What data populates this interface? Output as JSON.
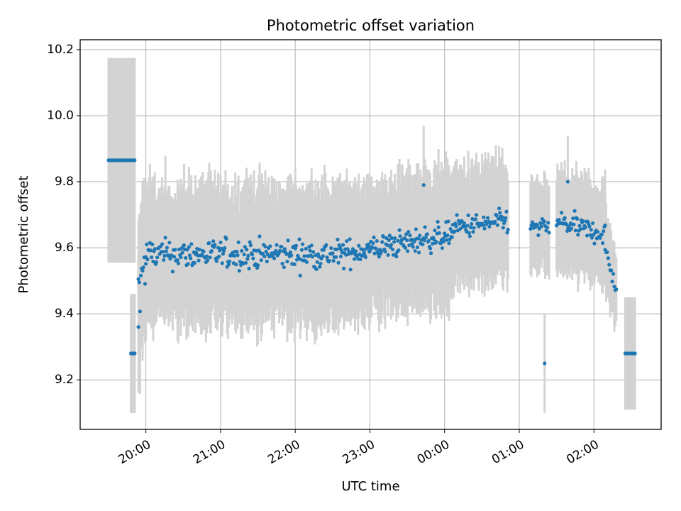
{
  "chart_data": {
    "type": "scatter",
    "title": "Photometric offset variation",
    "xlabel": "UTC time",
    "ylabel": "Photometric offset",
    "x_unit": "UTC time (hours, after 19:00 = 19.x, after midnight = 24.x)",
    "x_ticks": [
      {
        "label": "20:00",
        "hour": 20.0
      },
      {
        "label": "21:00",
        "hour": 21.0
      },
      {
        "label": "22:00",
        "hour": 22.0
      },
      {
        "label": "23:00",
        "hour": 23.0
      },
      {
        "label": "00:00",
        "hour": 24.0
      },
      {
        "label": "01:00",
        "hour": 25.0
      },
      {
        "label": "02:00",
        "hour": 26.0
      }
    ],
    "y_ticks": [
      {
        "label": "9.2",
        "value": 9.2
      },
      {
        "label": "9.4",
        "value": 9.4
      },
      {
        "label": "9.6",
        "value": 9.6
      },
      {
        "label": "9.8",
        "value": 9.8
      },
      {
        "label": "10.0",
        "value": 10.0
      },
      {
        "label": "10.2",
        "value": 10.2
      }
    ],
    "xlim": [
      19.12,
      26.9
    ],
    "ylim": [
      9.05,
      10.23
    ],
    "grid": true,
    "colors": {
      "marker": "#1f77b4",
      "errorbar": "#d3d3d3",
      "grid": "#b0b0b0",
      "axes": "#000000"
    },
    "segments": [
      {
        "x0": 19.5,
        "x1": 19.85,
        "n": 24,
        "base": 9.865,
        "drift": 0.0,
        "noise": 0.0,
        "err": 0.31
      },
      {
        "x0": 19.8,
        "x1": 19.85,
        "n": 6,
        "base": 9.28,
        "drift": 0.0,
        "noise": 0.0,
        "err": 0.18
      },
      {
        "x0": 19.9,
        "x1": 20.0,
        "n": 10,
        "base": 9.5,
        "drift": 0.05,
        "noise": 0.08,
        "err": 0.22
      },
      {
        "x0": 20.0,
        "x1": 22.6,
        "n": 240,
        "base": 9.58,
        "drift": 0.0,
        "noise": 0.045,
        "err": 0.2
      },
      {
        "x0": 22.6,
        "x1": 24.1,
        "n": 150,
        "base": 9.58,
        "drift": 0.06,
        "noise": 0.04,
        "err": 0.19
      },
      {
        "x0": 24.1,
        "x1": 24.85,
        "n": 70,
        "base": 9.66,
        "drift": 0.02,
        "noise": 0.035,
        "err": 0.17
      },
      {
        "x0": 25.15,
        "x1": 25.4,
        "n": 20,
        "base": 9.66,
        "drift": 0.0,
        "noise": 0.03,
        "err": 0.13
      },
      {
        "x0": 25.5,
        "x1": 26.15,
        "n": 60,
        "base": 9.68,
        "drift": -0.04,
        "noise": 0.035,
        "err": 0.14
      },
      {
        "x0": 26.15,
        "x1": 26.3,
        "n": 12,
        "base": 9.6,
        "drift": -0.13,
        "noise": 0.025,
        "err": 0.12
      },
      {
        "x0": 26.42,
        "x1": 26.55,
        "n": 8,
        "base": 9.28,
        "drift": 0.0,
        "noise": 0.0,
        "err": 0.17
      }
    ],
    "special_points": [
      {
        "x": 19.85,
        "y": 9.28,
        "err": 0.18
      },
      {
        "x": 19.9,
        "y": 9.36,
        "err": 0.2
      },
      {
        "x": 25.34,
        "y": 9.25,
        "err": 0.15
      },
      {
        "x": 22.99,
        "y": 9.6,
        "err": 0.2
      },
      {
        "x": 23.72,
        "y": 9.79,
        "err": 0.18
      },
      {
        "x": 25.65,
        "y": 9.8,
        "err": 0.14
      }
    ]
  }
}
